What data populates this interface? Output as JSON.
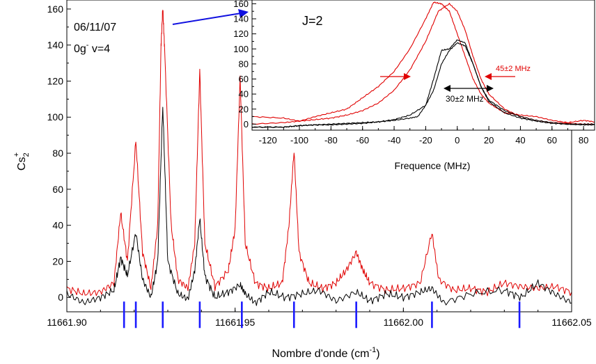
{
  "chart_data": [
    {
      "type": "line",
      "xlabel": "Nombre d'onde (cm",
      "xlabel_sup": "-1",
      "xlabel_tail": ")",
      "ylabel_main": "Cs",
      "ylabel_sub": "2",
      "ylabel_sup": "+",
      "annotations": {
        "date": "06/11/07",
        "state_prefix": "0g",
        "state_sup": "-",
        "state_suffix": " v=4"
      },
      "xlim": [
        11661.9,
        11662.05
      ],
      "ylim": [
        -8,
        165
      ],
      "xticks": [
        11661.9,
        11661.95,
        11662.0,
        11662.05
      ],
      "xtick_labels": [
        "11661.90",
        "11661.95",
        "11662.00",
        "11662.05"
      ],
      "yticks": [
        0,
        20,
        40,
        60,
        80,
        100,
        120,
        140,
        160
      ],
      "ytick_labels": [
        "0",
        "20",
        "40",
        "60",
        "80",
        "100",
        "120",
        "140",
        "160"
      ],
      "line_positions": [
        11661.917,
        11661.9205,
        11661.9285,
        11661.9395,
        11661.952,
        11661.9675,
        11661.986,
        11662.0085,
        11662.0345
      ],
      "series": [
        {
          "color": "#e00000",
          "points": [
            [
              11661.9,
              5
            ],
            [
              11661.905,
              2
            ],
            [
              11661.91,
              3
            ],
            [
              11661.914,
              8
            ],
            [
              11661.916,
              47
            ],
            [
              11661.918,
              20
            ],
            [
              11661.9205,
              87
            ],
            [
              11661.9225,
              25
            ],
            [
              11661.925,
              5
            ],
            [
              11661.927,
              40
            ],
            [
              11661.928,
              140
            ],
            [
              11661.9285,
              160
            ],
            [
              11661.929,
              140
            ],
            [
              11661.931,
              40
            ],
            [
              11661.933,
              10
            ],
            [
              11661.936,
              5
            ],
            [
              11661.938,
              30
            ],
            [
              11661.9395,
              126
            ],
            [
              11661.941,
              30
            ],
            [
              11661.944,
              6
            ],
            [
              11661.948,
              15
            ],
            [
              11661.95,
              38
            ],
            [
              11661.9515,
              122
            ],
            [
              11661.953,
              30
            ],
            [
              11661.956,
              8
            ],
            [
              11661.96,
              5
            ],
            [
              11661.964,
              8
            ],
            [
              11661.966,
              40
            ],
            [
              11661.9675,
              81
            ],
            [
              11661.969,
              25
            ],
            [
              11661.972,
              8
            ],
            [
              11661.976,
              5
            ],
            [
              11661.98,
              8
            ],
            [
              11661.983,
              15
            ],
            [
              11661.986,
              25
            ],
            [
              11661.988,
              15
            ],
            [
              11661.99,
              8
            ],
            [
              11661.995,
              4
            ],
            [
              11662.0,
              5
            ],
            [
              11662.005,
              8
            ],
            [
              11662.0085,
              36
            ],
            [
              11662.0105,
              10
            ],
            [
              11662.015,
              4
            ],
            [
              11662.02,
              5
            ],
            [
              11662.025,
              3
            ],
            [
              11662.03,
              8
            ],
            [
              11662.035,
              6
            ],
            [
              11662.04,
              5
            ],
            [
              11662.045,
              6
            ],
            [
              11662.05,
              3
            ]
          ]
        },
        {
          "color": "#000000",
          "points": [
            [
              11661.9,
              2
            ],
            [
              11661.905,
              -3
            ],
            [
              11661.91,
              0
            ],
            [
              11661.914,
              4
            ],
            [
              11661.916,
              22
            ],
            [
              11661.918,
              12
            ],
            [
              11661.9205,
              36
            ],
            [
              11661.9225,
              10
            ],
            [
              11661.925,
              0
            ],
            [
              11661.927,
              20
            ],
            [
              11661.9285,
              106
            ],
            [
              11661.93,
              20
            ],
            [
              11661.933,
              2
            ],
            [
              11661.936,
              -1
            ],
            [
              11661.938,
              15
            ],
            [
              11661.9395,
              44
            ],
            [
              11661.941,
              12
            ],
            [
              11661.944,
              0
            ],
            [
              11661.948,
              3
            ],
            [
              11661.9515,
              7
            ],
            [
              11661.953,
              2
            ],
            [
              11661.956,
              -3
            ],
            [
              11661.96,
              3
            ],
            [
              11661.965,
              0
            ],
            [
              11661.97,
              2
            ],
            [
              11661.975,
              4
            ],
            [
              11661.98,
              -2
            ],
            [
              11661.986,
              3
            ],
            [
              11661.99,
              -2
            ],
            [
              11661.995,
              2
            ],
            [
              11662.0,
              0
            ],
            [
              11662.005,
              3
            ],
            [
              11662.0085,
              5
            ],
            [
              11662.012,
              -3
            ],
            [
              11662.02,
              2
            ],
            [
              11662.03,
              4
            ],
            [
              11662.035,
              0
            ],
            [
              11662.04,
              8
            ],
            [
              11662.045,
              2
            ],
            [
              11662.05,
              -3
            ]
          ]
        }
      ]
    },
    {
      "type": "line",
      "title": "J=2",
      "xlabel": "Frequence (MHz)",
      "xlim": [
        -130,
        87
      ],
      "ylim": [
        -8,
        165
      ],
      "xticks": [
        -120,
        -100,
        -80,
        -60,
        -40,
        -20,
        0,
        20,
        40,
        60,
        80
      ],
      "xtick_labels": [
        "-120",
        "-100",
        "-80",
        "-60",
        "-40",
        "-20",
        "0",
        "20",
        "40",
        "60",
        "80"
      ],
      "yticks": [
        0,
        20,
        40,
        60,
        80,
        100,
        120,
        140,
        160
      ],
      "ytick_labels": [
        "0",
        "20",
        "40",
        "60",
        "80",
        "100",
        "120",
        "140",
        "160"
      ],
      "annotations": {
        "red_width": "45±2 MHz",
        "black_width": "30±2 MHz"
      },
      "series": [
        {
          "color": "#e00000",
          "points": [
            [
              -130,
              10
            ],
            [
              -110,
              8
            ],
            [
              -100,
              4
            ],
            [
              -90,
              10
            ],
            [
              -80,
              15
            ],
            [
              -70,
              20
            ],
            [
              -60,
              35
            ],
            [
              -50,
              50
            ],
            [
              -40,
              70
            ],
            [
              -30,
              100
            ],
            [
              -20,
              140
            ],
            [
              -15,
              162
            ],
            [
              -10,
              160
            ],
            [
              -5,
              150
            ],
            [
              0,
              120
            ],
            [
              5,
              90
            ],
            [
              10,
              60
            ],
            [
              15,
              40
            ],
            [
              20,
              28
            ],
            [
              30,
              15
            ],
            [
              40,
              12
            ],
            [
              50,
              10
            ],
            [
              60,
              5
            ],
            [
              70,
              2
            ],
            [
              80,
              5
            ],
            [
              87,
              3
            ]
          ]
        },
        {
          "color": "#e00000",
          "points": [
            [
              -130,
              0
            ],
            [
              -110,
              2
            ],
            [
              -100,
              4
            ],
            [
              -90,
              6
            ],
            [
              -80,
              8
            ],
            [
              -70,
              12
            ],
            [
              -60,
              18
            ],
            [
              -50,
              28
            ],
            [
              -40,
              45
            ],
            [
              -30,
              72
            ],
            [
              -20,
              110
            ],
            [
              -12,
              150
            ],
            [
              -5,
              160
            ],
            [
              0,
              150
            ],
            [
              5,
              125
            ],
            [
              10,
              90
            ],
            [
              15,
              60
            ],
            [
              20,
              40
            ],
            [
              30,
              20
            ],
            [
              40,
              10
            ],
            [
              50,
              5
            ],
            [
              60,
              2
            ],
            [
              70,
              1
            ],
            [
              80,
              0
            ],
            [
              87,
              0
            ]
          ]
        },
        {
          "color": "#000000",
          "points": [
            [
              -130,
              -4
            ],
            [
              -110,
              -4
            ],
            [
              -100,
              -2
            ],
            [
              -90,
              -1
            ],
            [
              -80,
              -1
            ],
            [
              -70,
              0
            ],
            [
              -60,
              1
            ],
            [
              -50,
              3
            ],
            [
              -40,
              6
            ],
            [
              -30,
              12
            ],
            [
              -20,
              25
            ],
            [
              -15,
              45
            ],
            [
              -10,
              80
            ],
            [
              -5,
              98
            ],
            [
              0,
              108
            ],
            [
              5,
              104
            ],
            [
              10,
              80
            ],
            [
              15,
              50
            ],
            [
              20,
              30
            ],
            [
              30,
              15
            ],
            [
              40,
              8
            ],
            [
              50,
              4
            ],
            [
              60,
              1
            ],
            [
              70,
              0
            ],
            [
              80,
              -1
            ],
            [
              87,
              -1
            ]
          ]
        },
        {
          "color": "#000000",
          "points": [
            [
              -130,
              -4
            ],
            [
              -110,
              -4
            ],
            [
              -100,
              -2
            ],
            [
              -90,
              -1
            ],
            [
              -80,
              0
            ],
            [
              -70,
              1
            ],
            [
              -60,
              2
            ],
            [
              -50,
              3
            ],
            [
              -40,
              5
            ],
            [
              -30,
              8
            ],
            [
              -25,
              10
            ],
            [
              -20,
              25
            ],
            [
              -15,
              60
            ],
            [
              -10,
              98
            ],
            [
              -5,
              100
            ],
            [
              0,
              112
            ],
            [
              5,
              108
            ],
            [
              10,
              80
            ],
            [
              15,
              50
            ],
            [
              20,
              32
            ],
            [
              30,
              18
            ],
            [
              40,
              10
            ],
            [
              50,
              5
            ],
            [
              60,
              2
            ],
            [
              70,
              0
            ],
            [
              80,
              0
            ],
            [
              87,
              0
            ]
          ]
        }
      ]
    }
  ]
}
